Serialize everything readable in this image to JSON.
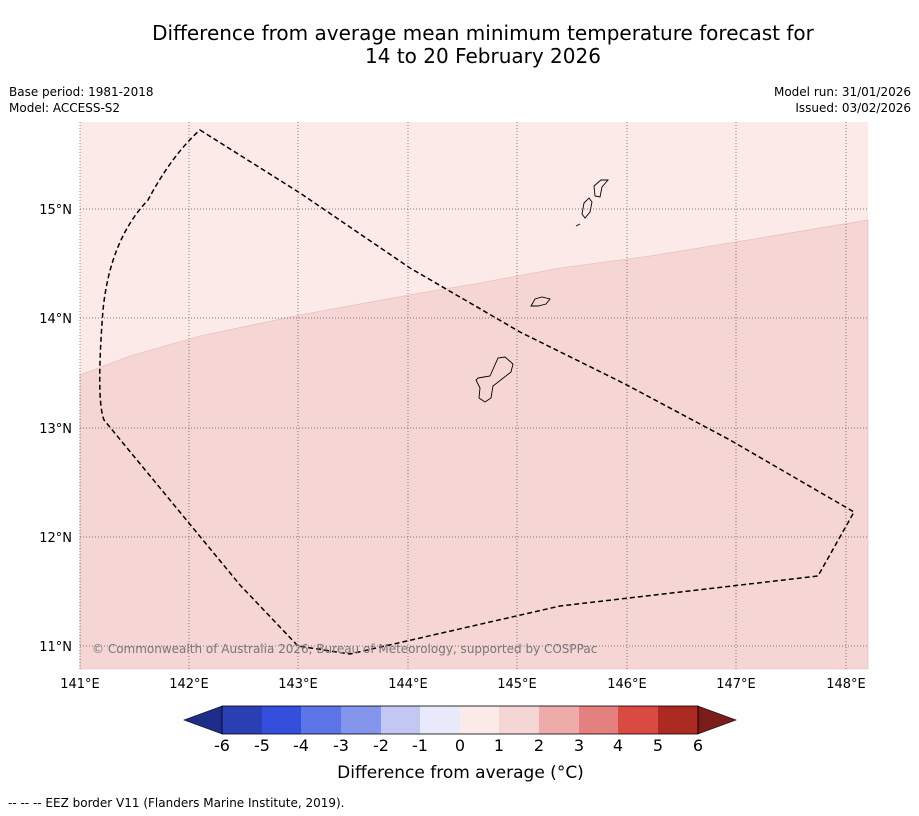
{
  "title": {
    "line1": "Difference from average mean minimum temperature forecast for",
    "line2": "14 to 20 February 2026"
  },
  "meta": {
    "base_period": "Base period: 1981-2018",
    "model": "Model: ACCESS-S2",
    "model_run": "Model run: 31/01/2026",
    "issued": "Issued: 03/02/2026"
  },
  "map": {
    "lon_labels": [
      "141°E",
      "142°E",
      "143°E",
      "144°E",
      "145°E",
      "146°E",
      "147°E",
      "148°E"
    ],
    "lat_labels": [
      "15°N",
      "14°N",
      "13°N",
      "12°N",
      "11°N"
    ],
    "copyright": "© Commonwealth of Australia 2026, Bureau of Meteorology, supported by COSPPac",
    "region_colors": {
      "anomaly_0_to_1": "#fbeae8",
      "anomaly_1_to_2": "#f5d6d4"
    }
  },
  "colorbar": {
    "tick_labels": [
      "-6",
      "-5",
      "-4",
      "-3",
      "-2",
      "-1",
      "0",
      "1",
      "2",
      "3",
      "4",
      "5",
      "6"
    ],
    "colors": [
      "#1d2d8a",
      "#2b3fb3",
      "#344fdd",
      "#5b74e6",
      "#8396ec",
      "#c2c8f3",
      "#e8eafb",
      "#fbeae8",
      "#f5d6d4",
      "#edaca9",
      "#e4817e",
      "#d94a40",
      "#ad2a22",
      "#7a1c19"
    ],
    "label": "Difference from average (",
    "unit": "°C)"
  },
  "footnote": "--  --  -- EEZ border V11 (Flanders Marine Institute, 2019)."
}
